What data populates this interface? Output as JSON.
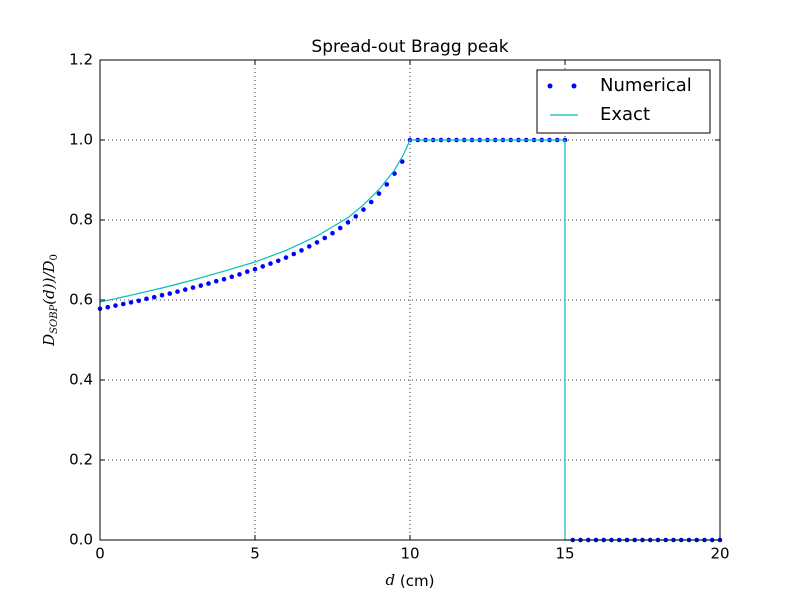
{
  "chart_data": {
    "type": "line",
    "title": "Spread-out Bragg peak",
    "xlabel": [
      "d",
      "(cm)"
    ],
    "ylabel": [
      "D",
      "SOBP",
      "(d))/D",
      "0"
    ],
    "xlim": [
      0,
      20
    ],
    "ylim": [
      0,
      1.2
    ],
    "xticks": [
      0,
      5,
      10,
      15,
      20
    ],
    "yticks": [
      {
        "value": 0,
        "label": "0.0"
      },
      {
        "value": 0.2,
        "label": "0.2"
      },
      {
        "value": 0.4,
        "label": "0.4"
      },
      {
        "value": 0.6,
        "label": "0.6"
      },
      {
        "value": 0.8,
        "label": "0.8"
      },
      {
        "value": 1.0,
        "label": "1.0"
      },
      {
        "value": 1.2,
        "label": "1.2"
      }
    ],
    "grid": true,
    "legend": "upper right",
    "series": [
      {
        "name": "Numerical",
        "color": "#0000ff",
        "marker": "o",
        "x": [
          0,
          0.25,
          0.5,
          0.75,
          1,
          1.25,
          1.5,
          1.75,
          2,
          2.25,
          2.5,
          2.75,
          3,
          3.25,
          3.5,
          3.75,
          4,
          4.25,
          4.5,
          4.75,
          5,
          5.25,
          5.5,
          5.75,
          6,
          6.25,
          6.5,
          6.75,
          7,
          7.25,
          7.5,
          7.75,
          8,
          8.25,
          8.5,
          8.75,
          9,
          9.25,
          9.5,
          9.75,
          10,
          10.25,
          10.5,
          10.75,
          11,
          11.25,
          11.5,
          11.75,
          12,
          12.25,
          12.5,
          12.75,
          13,
          13.25,
          13.5,
          13.75,
          14,
          14.25,
          14.5,
          14.75,
          15,
          15.25,
          15.5,
          15.75,
          16,
          16.25,
          16.5,
          16.75,
          17,
          17.25,
          17.5,
          17.75,
          18,
          18.25,
          18.5,
          18.75,
          19,
          19.25,
          19.5,
          19.75,
          20
        ],
        "values": [
          0.578,
          0.582,
          0.586,
          0.59,
          0.594,
          0.598,
          0.603,
          0.607,
          0.612,
          0.616,
          0.621,
          0.626,
          0.631,
          0.636,
          0.641,
          0.647,
          0.652,
          0.658,
          0.664,
          0.671,
          0.677,
          0.684,
          0.691,
          0.698,
          0.706,
          0.715,
          0.724,
          0.734,
          0.744,
          0.755,
          0.767,
          0.78,
          0.794,
          0.809,
          0.826,
          0.845,
          0.866,
          0.889,
          0.916,
          0.946,
          1,
          1,
          1,
          1,
          1,
          1,
          1,
          1,
          1,
          1,
          1,
          1,
          1,
          1,
          1,
          1,
          1,
          1,
          1,
          1,
          1,
          0,
          0,
          0,
          0,
          0,
          0,
          0,
          0,
          0,
          0,
          0,
          0,
          0,
          0,
          0,
          0,
          0,
          0,
          0,
          0
        ]
      },
      {
        "name": "Exact",
        "color": "#00bfbf",
        "marker": "none",
        "x": [
          0,
          1,
          2,
          3,
          4,
          5,
          6,
          7,
          8,
          8.5,
          9,
          9.5,
          9.8,
          10,
          15,
          15,
          20
        ],
        "values": [
          0.595,
          0.612,
          0.63,
          0.65,
          0.672,
          0.695,
          0.724,
          0.76,
          0.806,
          0.838,
          0.876,
          0.925,
          0.965,
          1,
          1,
          0,
          0
        ]
      }
    ]
  }
}
